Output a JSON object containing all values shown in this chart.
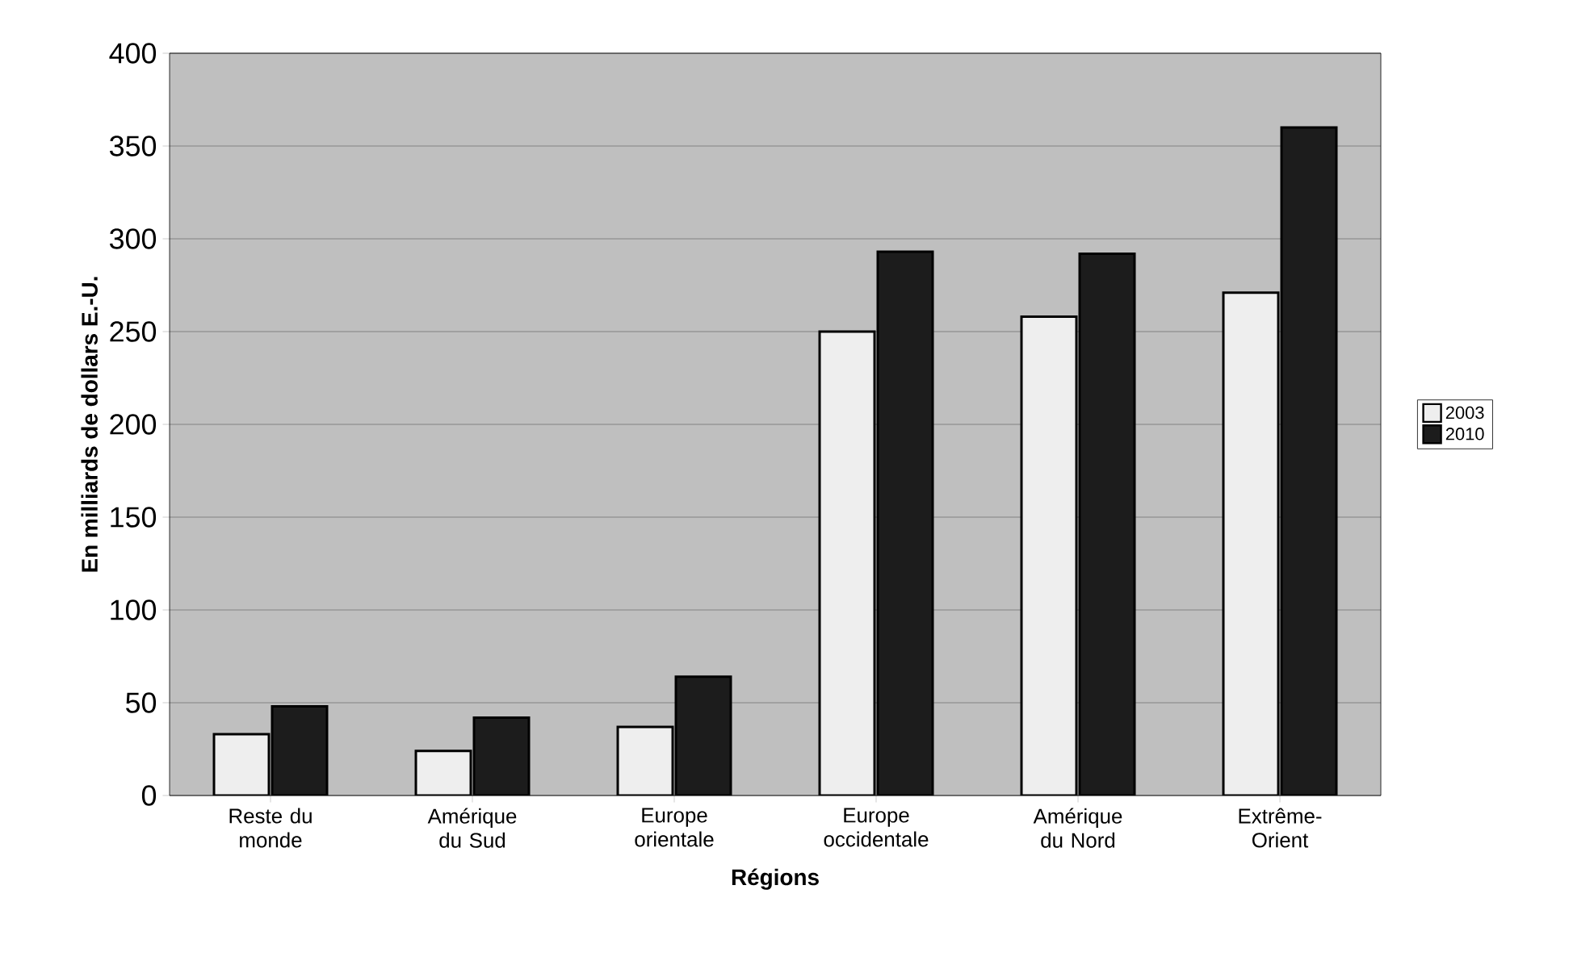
{
  "chart_data": {
    "type": "bar",
    "xlabel": "Régions",
    "ylabel": "En  milliards de dollars E.-U.",
    "categories": [
      "Reste du monde",
      "Amérique du Sud",
      "Europe orientale",
      "Europe occidentale",
      "Amérique du Nord",
      "Extrême-Orient"
    ],
    "series": [
      {
        "name": "2003",
        "color": "#eeeeee",
        "values": [
          33,
          24,
          37,
          250,
          258,
          271
        ]
      },
      {
        "name": "2010",
        "color": "#1c1c1c",
        "values": [
          48,
          42,
          64,
          293,
          292,
          360
        ]
      }
    ],
    "ylim": [
      0,
      400
    ],
    "yticks": [
      0,
      50,
      100,
      150,
      200,
      250,
      300,
      350,
      400
    ],
    "grid": "y",
    "legend": "right"
  }
}
